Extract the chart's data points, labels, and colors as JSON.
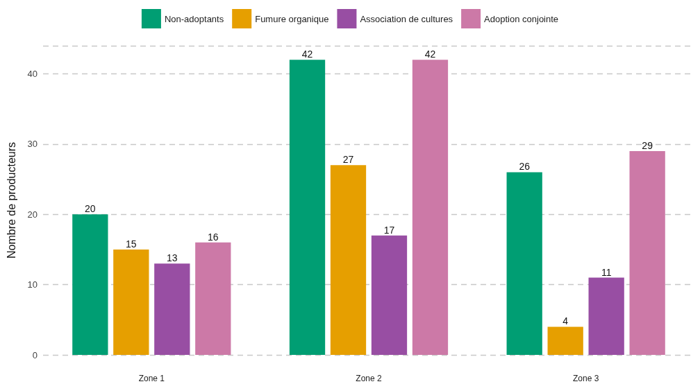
{
  "chart_data": {
    "type": "bar",
    "ylabel": "Nombre de producteurs",
    "categories": [
      "Zone 1",
      "Zone 2",
      "Zone 3"
    ],
    "series": [
      {
        "name": "Non-adoptants",
        "color": "#009e73",
        "values": [
          20,
          42,
          26
        ]
      },
      {
        "name": "Fumure organique",
        "color": "#e69f00",
        "values": [
          15,
          27,
          4
        ]
      },
      {
        "name": "Association de cultures",
        "color": "#984ea3",
        "values": [
          13,
          17,
          11
        ]
      },
      {
        "name": "Adoption conjointe",
        "color": "#cc79a7",
        "values": [
          16,
          42,
          29
        ]
      }
    ],
    "ylim": [
      0,
      44
    ],
    "yticks": [
      0,
      10,
      20,
      30,
      40
    ],
    "grid": "y",
    "legend": "top",
    "data_labels": true
  }
}
